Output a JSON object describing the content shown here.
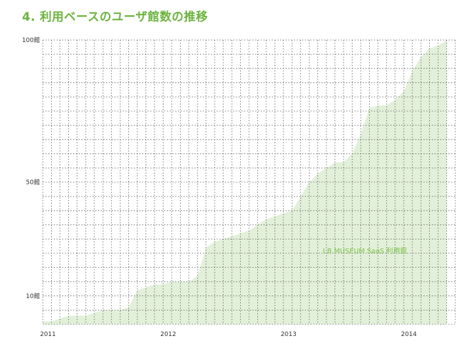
{
  "title": "4. 利用ベースのユーザ館数の推移",
  "colors": {
    "title": "#6cb33f",
    "area_fill": "#e2f0d9",
    "series_label": "#7cc04b",
    "grid": "#555555"
  },
  "chart_data": {
    "type": "area",
    "title": "4. 利用ベースのユーザ館数の推移",
    "xlabel": "",
    "ylabel": "",
    "x_range": [
      0,
      48
    ],
    "ylim": [
      0,
      100
    ],
    "grid": true,
    "y_ticks": [
      {
        "value": 100,
        "label": "100館"
      },
      {
        "value": 50,
        "label": "50館"
      },
      {
        "value": 10,
        "label": "10館"
      }
    ],
    "x_ticks": [
      {
        "value": 0,
        "label": "2011"
      },
      {
        "value": 14,
        "label": "2012"
      },
      {
        "value": 28,
        "label": "2013"
      },
      {
        "value": 42,
        "label": "2014"
      }
    ],
    "series": [
      {
        "name": "I.B.MUSEUM SaaS 利用館",
        "color": "#e2f0d9",
        "points": [
          [
            0,
            1
          ],
          [
            1,
            1
          ],
          [
            2,
            2
          ],
          [
            3,
            3
          ],
          [
            4,
            3
          ],
          [
            5,
            3
          ],
          [
            6,
            4
          ],
          [
            7,
            5
          ],
          [
            8,
            5
          ],
          [
            9,
            5
          ],
          [
            10,
            6
          ],
          [
            11,
            12
          ],
          [
            12,
            13
          ],
          [
            13,
            14
          ],
          [
            14,
            14
          ],
          [
            15,
            15
          ],
          [
            16,
            15
          ],
          [
            17,
            15
          ],
          [
            18,
            17
          ],
          [
            19,
            27
          ],
          [
            20,
            29
          ],
          [
            21,
            30
          ],
          [
            22,
            31
          ],
          [
            23,
            32
          ],
          [
            24,
            33
          ],
          [
            25,
            35
          ],
          [
            26,
            37
          ],
          [
            27,
            38
          ],
          [
            28,
            39
          ],
          [
            29,
            40
          ],
          [
            30,
            45
          ],
          [
            31,
            50
          ],
          [
            32,
            53
          ],
          [
            33,
            55
          ],
          [
            34,
            57
          ],
          [
            35,
            57
          ],
          [
            36,
            60
          ],
          [
            37,
            67
          ],
          [
            38,
            76
          ],
          [
            39,
            77
          ],
          [
            40,
            77
          ],
          [
            41,
            79
          ],
          [
            42,
            82
          ],
          [
            43,
            89
          ],
          [
            44,
            94
          ],
          [
            45,
            97
          ],
          [
            46,
            98
          ],
          [
            47,
            100
          ]
        ]
      }
    ],
    "legend": "inside-right"
  }
}
